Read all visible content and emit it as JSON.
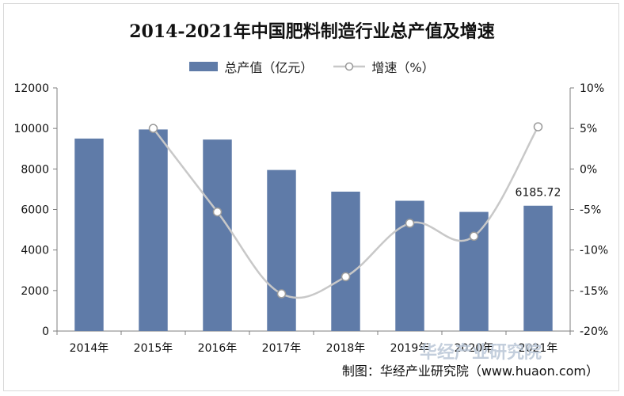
{
  "chart_data": {
    "type": "bar",
    "title": "2014-2021年中国肥料制造行业总产值及增速",
    "categories": [
      "2014年",
      "2015年",
      "2016年",
      "2017年",
      "2018年",
      "2019年",
      "2020年",
      "2021年"
    ],
    "series": [
      {
        "name": "总产值（亿元）",
        "type": "bar",
        "axis": "left",
        "color": "#5f7ba8",
        "values": [
          9500,
          9950,
          9450,
          7950,
          6880,
          6430,
          5880,
          6185.72
        ]
      },
      {
        "name": "增速（%）",
        "type": "line",
        "axis": "right",
        "color": "#c8c8c8",
        "values": [
          null,
          5.0,
          -5.3,
          -15.4,
          -13.3,
          -6.7,
          -8.3,
          5.2
        ]
      }
    ],
    "data_labels": [
      {
        "category_index": 7,
        "series": 0,
        "text": "6185.72"
      }
    ],
    "left_axis": {
      "ylim": [
        0,
        12000
      ],
      "ticks": [
        "0",
        "2000",
        "4000",
        "6000",
        "8000",
        "10000",
        "12000"
      ]
    },
    "right_axis": {
      "ylim": [
        -20,
        10
      ],
      "ticks": [
        "-20%",
        "-15%",
        "-10%",
        "-5%",
        "0%",
        "5%",
        "10%"
      ]
    },
    "grid": false,
    "legend_position": "top"
  },
  "credit": "制图：华经产业研究院（www.huaon.com）",
  "watermark": "华经产业研究院"
}
